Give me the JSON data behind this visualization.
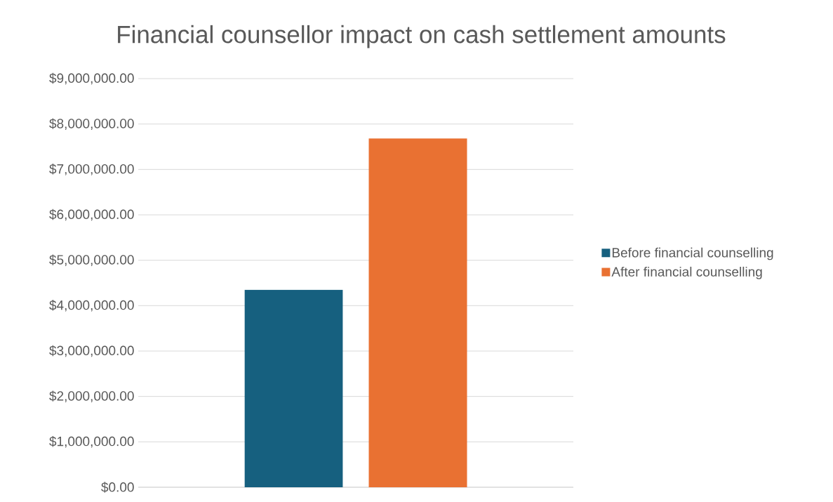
{
  "chart_data": {
    "type": "bar",
    "title": "Financial counsellor impact on cash settlement amounts",
    "categories": [
      null
    ],
    "series": [
      {
        "name": "Before financial counselling",
        "color": "#16607f",
        "values": [
          4350000
        ]
      },
      {
        "name": "After financial counselling",
        "color": "#e97132",
        "values": [
          7680000
        ]
      }
    ],
    "ylim": [
      0,
      9000000
    ],
    "yticks": [
      {
        "value": 0,
        "label": "$0.00"
      },
      {
        "value": 1000000,
        "label": "$1,000,000.00"
      },
      {
        "value": 2000000,
        "label": "$2,000,000.00"
      },
      {
        "value": 3000000,
        "label": "$3,000,000.00"
      },
      {
        "value": 4000000,
        "label": "$4,000,000.00"
      },
      {
        "value": 5000000,
        "label": "$5,000,000.00"
      },
      {
        "value": 6000000,
        "label": "$6,000,000.00"
      },
      {
        "value": 7000000,
        "label": "$7,000,000.00"
      },
      {
        "value": 8000000,
        "label": "$8,000,000.00"
      },
      {
        "value": 9000000,
        "label": "$9,000,000.00"
      }
    ],
    "grid": "y",
    "legend": "right"
  }
}
